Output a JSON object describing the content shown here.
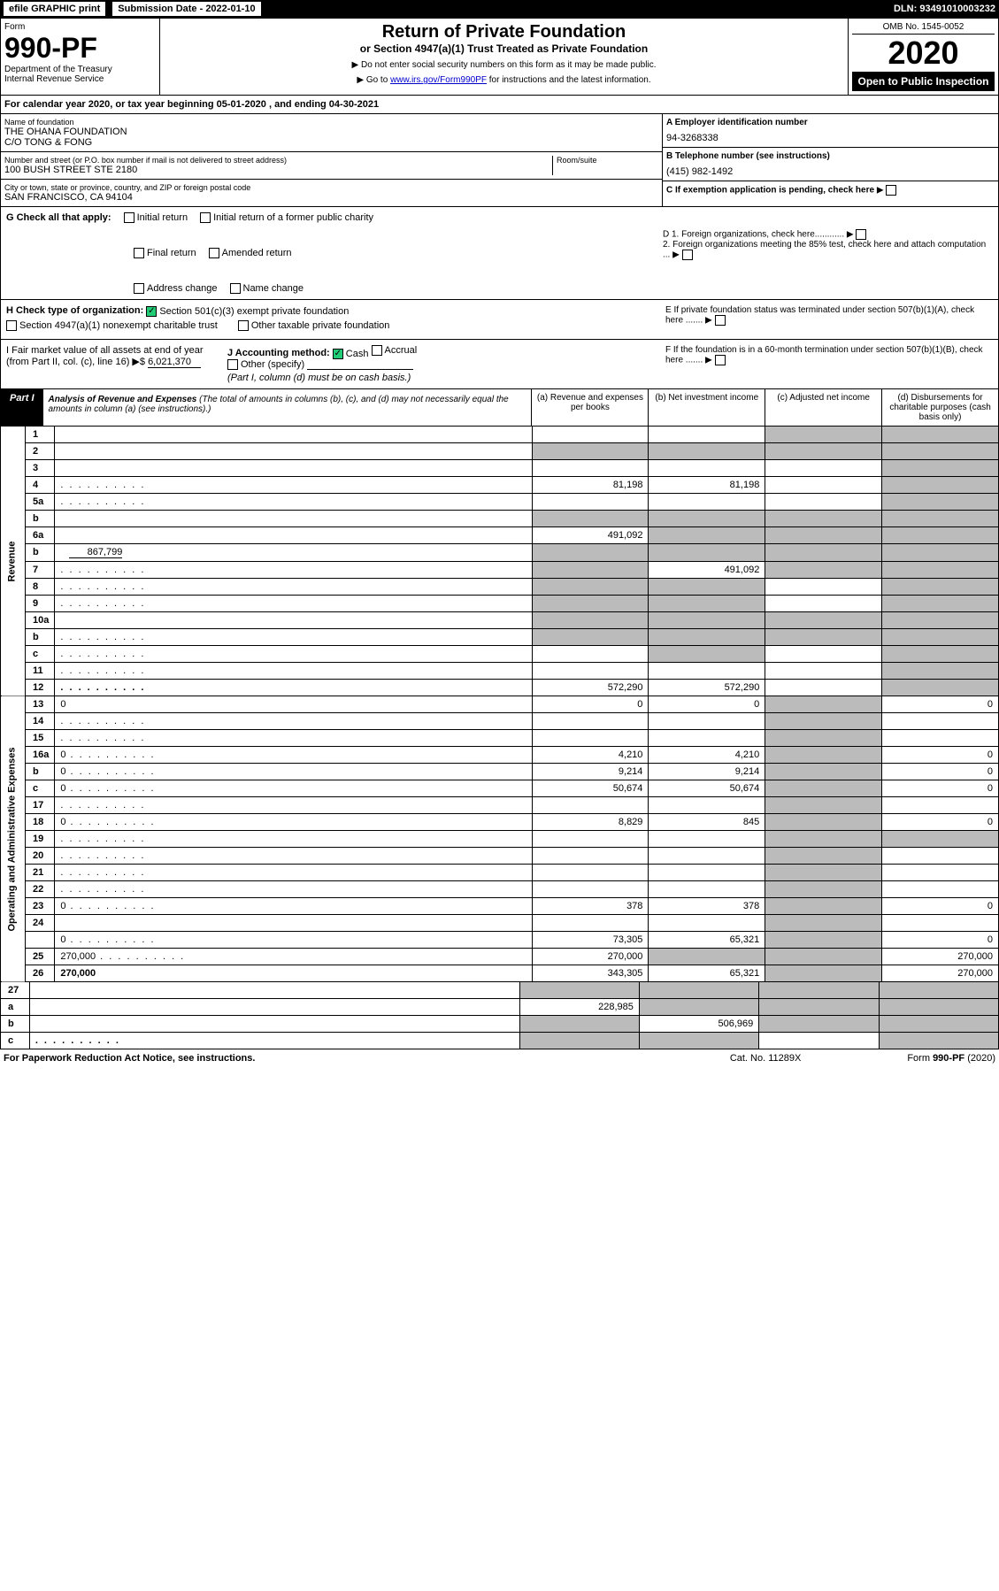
{
  "top": {
    "efile": "efile GRAPHIC print",
    "sub_date": "Submission Date - 2022-01-10",
    "dln": "DLN: 93491010003232"
  },
  "header": {
    "form": "Form",
    "form_no": "990-PF",
    "dept": "Department of the Treasury",
    "irs": "Internal Revenue Service",
    "title": "Return of Private Foundation",
    "subtitle": "or Section 4947(a)(1) Trust Treated as Private Foundation",
    "note1": "▶ Do not enter social security numbers on this form as it may be made public.",
    "note2": "▶ Go to www.irs.gov/Form990PF for instructions and the latest information.",
    "omb": "OMB No. 1545-0052",
    "year": "2020",
    "open": "Open to Public Inspection"
  },
  "cal_year": "For calendar year 2020, or tax year beginning 05-01-2020             , and ending 04-30-2021",
  "info": {
    "name_lbl": "Name of foundation",
    "name": "THE OHANA FOUNDATION",
    "co": "C/O TONG & FONG",
    "addr_lbl": "Number and street (or P.O. box number if mail is not delivered to street address)",
    "addr": "100 BUSH STREET STE 2180",
    "room_lbl": "Room/suite",
    "city_lbl": "City or town, state or province, country, and ZIP or foreign postal code",
    "city": "SAN FRANCISCO, CA  94104",
    "a_lbl": "A Employer identification number",
    "a_val": "94-3268338",
    "b_lbl": "B Telephone number (see instructions)",
    "b_val": "(415) 982-1492",
    "c_lbl": "C If exemption application is pending, check here",
    "d1": "D 1. Foreign organizations, check here............",
    "d2": "2. Foreign organizations meeting the 85% test, check here and attach computation ...",
    "e": "E  If private foundation status was terminated under section 507(b)(1)(A), check here .......",
    "f": "F  If the foundation is in a 60-month termination under section 507(b)(1)(B), check here .......",
    "g": "G Check all that apply:",
    "g_opts": [
      "Initial return",
      "Initial return of a former public charity",
      "Final return",
      "Amended return",
      "Address change",
      "Name change"
    ],
    "h": "H Check type of organization:",
    "h1": "Section 501(c)(3) exempt private foundation",
    "h2": "Section 4947(a)(1) nonexempt charitable trust",
    "h3": "Other taxable private foundation",
    "i": "I Fair market value of all assets at end of year (from Part II, col. (c), line 16) ▶$",
    "i_val": "6,021,370",
    "j": "J Accounting method:",
    "j1": "Cash",
    "j2": "Accrual",
    "j3": "Other (specify)",
    "j_note": "(Part I, column (d) must be on cash basis.)"
  },
  "part1": {
    "hdr": "Part I",
    "title": "Analysis of Revenue and Expenses",
    "sub": "(The total of amounts in columns (b), (c), and (d) may not necessarily equal the amounts in column (a) (see instructions).)",
    "col_a": "(a)  Revenue and expenses per books",
    "col_b": "(b)  Net investment income",
    "col_c": "(c)  Adjusted net income",
    "col_d": "(d)  Disbursements for charitable purposes (cash basis only)"
  },
  "side_rev": "Revenue",
  "side_exp": "Operating and Administrative Expenses",
  "rows": [
    {
      "n": "1",
      "d": "",
      "a": "",
      "b": "",
      "c": "",
      "cg": true,
      "dg": true
    },
    {
      "n": "2",
      "d": "",
      "a": "",
      "b": "",
      "c": "",
      "ag": true,
      "bg": true,
      "cg": true,
      "dg": true,
      "bold_not": true
    },
    {
      "n": "3",
      "d": "",
      "a": "",
      "b": "",
      "c": "",
      "dg": true
    },
    {
      "n": "4",
      "d": "",
      "a": "81,198",
      "b": "81,198",
      "c": "",
      "dg": true,
      "dots": true
    },
    {
      "n": "5a",
      "d": "",
      "a": "",
      "b": "",
      "c": "",
      "dg": true,
      "dots": true
    },
    {
      "n": "b",
      "d": "",
      "a": "",
      "b": "",
      "c": "",
      "ag": true,
      "bg": true,
      "cg": true,
      "dg": true
    },
    {
      "n": "6a",
      "d": "",
      "a": "491,092",
      "b": "",
      "c": "",
      "bg": true,
      "cg": true,
      "dg": true
    },
    {
      "n": "b",
      "d": "",
      "sub": "867,799",
      "a": "",
      "b": "",
      "c": "",
      "ag": true,
      "bg": true,
      "cg": true,
      "dg": true
    },
    {
      "n": "7",
      "d": "",
      "a": "",
      "b": "491,092",
      "c": "",
      "ag": true,
      "cg": true,
      "dg": true,
      "dots": true
    },
    {
      "n": "8",
      "d": "",
      "a": "",
      "b": "",
      "c": "",
      "ag": true,
      "bg": true,
      "dg": true,
      "dots": true
    },
    {
      "n": "9",
      "d": "",
      "a": "",
      "b": "",
      "c": "",
      "ag": true,
      "bg": true,
      "dg": true,
      "dots": true
    },
    {
      "n": "10a",
      "d": "",
      "a": "",
      "b": "",
      "c": "",
      "ag": true,
      "bg": true,
      "cg": true,
      "dg": true
    },
    {
      "n": "b",
      "d": "",
      "a": "",
      "b": "",
      "c": "",
      "ag": true,
      "bg": true,
      "cg": true,
      "dg": true,
      "dots": true
    },
    {
      "n": "c",
      "d": "",
      "a": "",
      "b": "",
      "c": "",
      "bg": true,
      "dg": true,
      "dots": true
    },
    {
      "n": "11",
      "d": "",
      "a": "",
      "b": "",
      "c": "",
      "dg": true,
      "dots": true
    },
    {
      "n": "12",
      "d": "",
      "a": "572,290",
      "b": "572,290",
      "c": "",
      "dg": true,
      "bold": true,
      "dots": true
    }
  ],
  "exp_rows": [
    {
      "n": "13",
      "d": "0",
      "a": "0",
      "b": "0",
      "c": "",
      "cg": true
    },
    {
      "n": "14",
      "d": "",
      "a": "",
      "b": "",
      "c": "",
      "cg": true,
      "dots": true
    },
    {
      "n": "15",
      "d": "",
      "a": "",
      "b": "",
      "c": "",
      "cg": true,
      "dots": true
    },
    {
      "n": "16a",
      "d": "0",
      "a": "4,210",
      "b": "4,210",
      "c": "",
      "cg": true,
      "dots": true
    },
    {
      "n": "b",
      "d": "0",
      "a": "9,214",
      "b": "9,214",
      "c": "",
      "cg": true,
      "dots": true
    },
    {
      "n": "c",
      "d": "0",
      "a": "50,674",
      "b": "50,674",
      "c": "",
      "cg": true,
      "dots": true
    },
    {
      "n": "17",
      "d": "",
      "a": "",
      "b": "",
      "c": "",
      "cg": true,
      "dots": true
    },
    {
      "n": "18",
      "d": "0",
      "a": "8,829",
      "b": "845",
      "c": "",
      "cg": true,
      "dots": true
    },
    {
      "n": "19",
      "d": "",
      "a": "",
      "b": "",
      "c": "",
      "cg": true,
      "dg": true,
      "dots": true
    },
    {
      "n": "20",
      "d": "",
      "a": "",
      "b": "",
      "c": "",
      "cg": true,
      "dots": true
    },
    {
      "n": "21",
      "d": "",
      "a": "",
      "b": "",
      "c": "",
      "cg": true,
      "dots": true
    },
    {
      "n": "22",
      "d": "",
      "a": "",
      "b": "",
      "c": "",
      "cg": true,
      "dots": true
    },
    {
      "n": "23",
      "d": "0",
      "a": "378",
      "b": "378",
      "c": "",
      "cg": true,
      "dots": true
    },
    {
      "n": "24",
      "d": "",
      "a": "",
      "b": "",
      "c": "",
      "cg": true,
      "bold": true
    },
    {
      "n": "",
      "d": "0",
      "a": "73,305",
      "b": "65,321",
      "c": "",
      "cg": true,
      "dots": true
    },
    {
      "n": "25",
      "d": "270,000",
      "a": "270,000",
      "b": "",
      "c": "",
      "bg": true,
      "cg": true,
      "dots": true
    },
    {
      "n": "26",
      "d": "270,000",
      "a": "343,305",
      "b": "65,321",
      "c": "",
      "cg": true,
      "bold": true
    }
  ],
  "net_rows": [
    {
      "n": "27",
      "d": "",
      "a": "",
      "b": "",
      "c": "",
      "ag": true,
      "bg": true,
      "cg": true,
      "dg": true
    },
    {
      "n": "a",
      "d": "",
      "a": "228,985",
      "b": "",
      "c": "",
      "bg": true,
      "cg": true,
      "dg": true,
      "bold": true
    },
    {
      "n": "b",
      "d": "",
      "a": "",
      "b": "506,969",
      "c": "",
      "ag": true,
      "cg": true,
      "dg": true,
      "bold": true
    },
    {
      "n": "c",
      "d": "",
      "a": "",
      "b": "",
      "c": "",
      "ag": true,
      "bg": true,
      "dg": true,
      "bold": true,
      "dots": true
    }
  ],
  "footer": {
    "left": "For Paperwork Reduction Act Notice, see instructions.",
    "mid": "Cat. No. 11289X",
    "right": "Form 990-PF (2020)"
  }
}
